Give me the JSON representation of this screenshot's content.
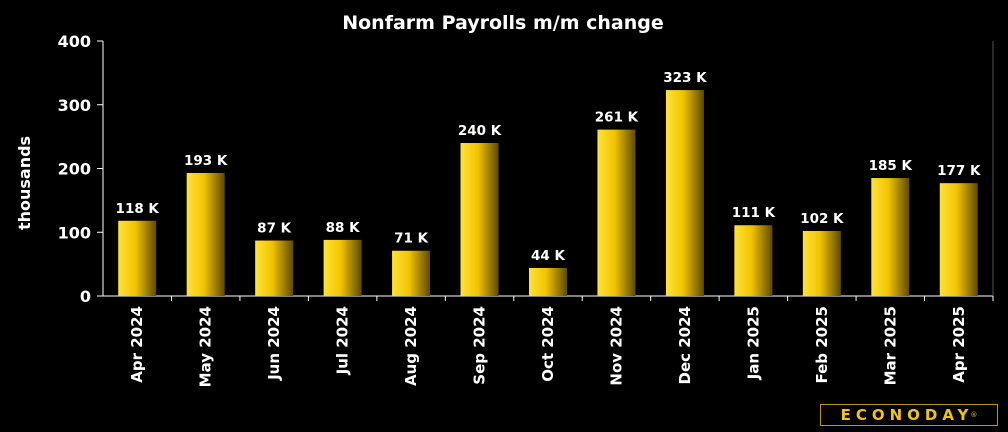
{
  "chart_data": {
    "type": "bar",
    "title": "Nonfarm Payrolls m/m change",
    "ylabel": "thousands",
    "xlabel": "",
    "ylim": [
      0,
      400
    ],
    "yticks": [
      0,
      100,
      200,
      300,
      400
    ],
    "grid": false,
    "categories": [
      "Apr 2024",
      "May 2024",
      "Jun 2024",
      "Jul 2024",
      "Aug 2024",
      "Sep 2024",
      "Oct 2024",
      "Nov 2024",
      "Dec 2024",
      "Jan 2025",
      "Feb 2025",
      "Mar 2025",
      "Apr 2025"
    ],
    "values": [
      118,
      193,
      87,
      88,
      71,
      240,
      44,
      261,
      323,
      111,
      102,
      185,
      177
    ],
    "data_labels": [
      "118 K",
      "193 K",
      "87 K",
      "88 K",
      "71 K",
      "240 K",
      "44 K",
      "261 K",
      "323 K",
      "111 K",
      "102 K",
      "185 K",
      "177 K"
    ],
    "colors": {
      "background": "#000000",
      "bar_light": "#ffdb1a",
      "bar_dark": "#5e4a00",
      "axis": "#ffffff"
    }
  },
  "logo": {
    "text": "ECONODAY",
    "mark": "®"
  }
}
